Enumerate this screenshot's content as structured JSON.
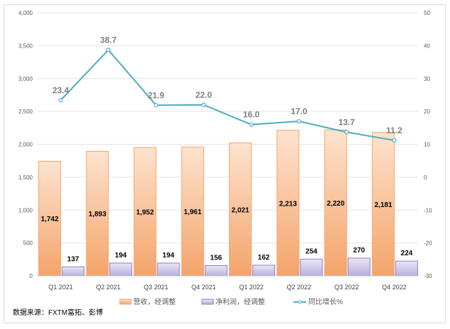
{
  "chart_data": {
    "type": "bar",
    "categories": [
      "Q1 2021",
      "Q2 2021",
      "Q3 2021",
      "Q4 2021",
      "Q1 2022",
      "Q2 2022",
      "Q3 2022",
      "Q4 2022"
    ],
    "series": [
      {
        "name": "营收，经调整",
        "type": "bar",
        "axis": "left",
        "color": "#f4b183",
        "values": [
          1742,
          1893,
          1952,
          1961,
          2021,
          2213,
          2220,
          2181
        ]
      },
      {
        "name": "净利润，经调整",
        "type": "bar",
        "axis": "left",
        "color": "#b4a7d6",
        "values": [
          137,
          194,
          194,
          156,
          162,
          254,
          270,
          224
        ]
      },
      {
        "name": "同比增长%",
        "type": "line",
        "axis": "right",
        "color": "#4bacc6",
        "values": [
          23.4,
          38.7,
          21.9,
          22.0,
          16.0,
          17.0,
          13.7,
          11.2
        ]
      }
    ],
    "yleft": {
      "lim": [
        0,
        4000
      ],
      "ticks": [
        "0",
        "500",
        "1,000",
        "1,500",
        "2,000",
        "2,500",
        "3,000",
        "3,500",
        "4,000"
      ]
    },
    "yright": {
      "lim": [
        -30,
        50
      ],
      "ticks": [
        "-30",
        "-20",
        "-10",
        "0",
        "10",
        "20",
        "30",
        "40",
        "50"
      ]
    },
    "grid": true,
    "legend": "bottom",
    "source": "数据来源：FXTM富拓、彭博"
  }
}
